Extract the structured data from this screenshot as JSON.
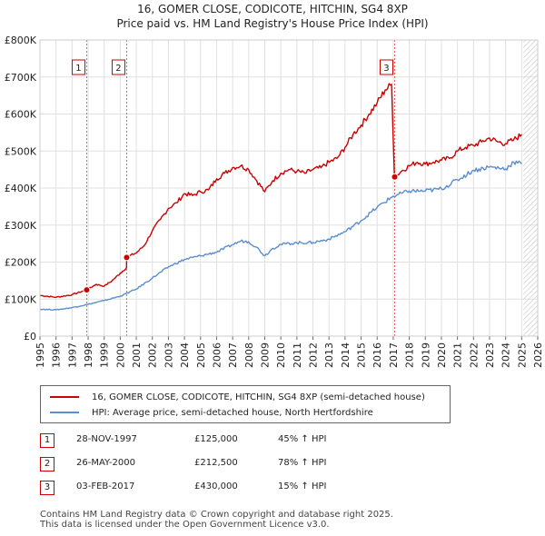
{
  "title_line1": "16, GOMER CLOSE, CODICOTE, HITCHIN, SG4 8XP",
  "title_line2": "Price paid vs. HM Land Registry's House Price Index (HPI)",
  "colors": {
    "property": "#cc0000",
    "hpi": "#5b8ecf",
    "grid": "#e0e0e0",
    "plot_bg": "#ffffff",
    "future_hatch": "#dddddd"
  },
  "chart_data": {
    "type": "line",
    "title": "Price paid vs. HM Land Registry's House Price Index (HPI)",
    "xlabel": "",
    "ylabel": "",
    "xlim": [
      1995,
      2026
    ],
    "ylim": [
      0,
      800000
    ],
    "x_ticks": [
      "1995",
      "1996",
      "1997",
      "1998",
      "1999",
      "2000",
      "2001",
      "2002",
      "2003",
      "2004",
      "2005",
      "2006",
      "2007",
      "2008",
      "2009",
      "2010",
      "2011",
      "2012",
      "2013",
      "2014",
      "2015",
      "2016",
      "2017",
      "2018",
      "2019",
      "2020",
      "2021",
      "2022",
      "2023",
      "2024",
      "2025",
      "2026"
    ],
    "y_ticks": [
      {
        "value": 0,
        "label": "£0"
      },
      {
        "value": 100000,
        "label": "£100K"
      },
      {
        "value": 200000,
        "label": "£200K"
      },
      {
        "value": 300000,
        "label": "£300K"
      },
      {
        "value": 400000,
        "label": "£400K"
      },
      {
        "value": 500000,
        "label": "£500K"
      },
      {
        "value": 600000,
        "label": "£600K"
      },
      {
        "value": 700000,
        "label": "£700K"
      },
      {
        "value": 800000,
        "label": "£800K"
      }
    ],
    "future_from": 2025.1,
    "series": [
      {
        "name": "16, GOMER CLOSE, CODICOTE, HITCHIN, SG4 8XP (semi-detached house)",
        "color": "#cc0000",
        "x": [
          1995.0,
          1996.0,
          1997.0,
          1997.91,
          1998.5,
          1999.0,
          1999.5,
          2000.0,
          2000.39,
          2000.4,
          2001.0,
          2001.5,
          2002.0,
          2002.5,
          2003.0,
          2003.5,
          2004.0,
          2004.5,
          2005.0,
          2005.5,
          2006.0,
          2006.5,
          2007.0,
          2007.5,
          2008.0,
          2008.5,
          2009.0,
          2009.5,
          2010.0,
          2010.5,
          2011.0,
          2011.5,
          2012.0,
          2012.5,
          2013.0,
          2013.5,
          2014.0,
          2014.5,
          2015.0,
          2015.5,
          2016.0,
          2016.5,
          2016.9,
          2017.08,
          2017.5,
          2018.0,
          2018.5,
          2019.0,
          2019.5,
          2020.0,
          2020.5,
          2021.0,
          2021.5,
          2022.0,
          2022.5,
          2023.0,
          2023.5,
          2024.0,
          2024.5,
          2025.0
        ],
        "y": [
          110000,
          105000,
          112000,
          125000,
          140000,
          135000,
          150000,
          170000,
          185000,
          212500,
          225000,
          245000,
          285000,
          315000,
          345000,
          360000,
          385000,
          380000,
          390000,
          395000,
          425000,
          440000,
          455000,
          460000,
          450000,
          420000,
          390000,
          420000,
          440000,
          450000,
          445000,
          440000,
          450000,
          455000,
          470000,
          480000,
          510000,
          545000,
          570000,
          600000,
          630000,
          665000,
          680000,
          430000,
          445000,
          460000,
          470000,
          465000,
          470000,
          475000,
          480000,
          500000,
          510000,
          515000,
          525000,
          535000,
          525000,
          520000,
          530000,
          545000
        ]
      },
      {
        "name": "HPI: Average price, semi-detached house, North Hertfordshire",
        "color": "#5b8ecf",
        "x": [
          1995.0,
          1996.0,
          1997.0,
          1998.0,
          1999.0,
          2000.0,
          2001.0,
          2002.0,
          2003.0,
          2004.0,
          2005.0,
          2006.0,
          2007.0,
          2007.5,
          2008.0,
          2008.5,
          2009.0,
          2009.5,
          2010.0,
          2011.0,
          2012.0,
          2013.0,
          2014.0,
          2015.0,
          2016.0,
          2017.0,
          2018.0,
          2019.0,
          2020.0,
          2021.0,
          2022.0,
          2023.0,
          2024.0,
          2024.5,
          2025.0
        ],
        "y": [
          73000,
          71000,
          77000,
          86000,
          96000,
          108000,
          127000,
          157000,
          187000,
          207000,
          217000,
          227000,
          247000,
          257000,
          255000,
          240000,
          217000,
          237000,
          248000,
          252000,
          253000,
          262000,
          282000,
          312000,
          348000,
          378000,
          392000,
          392000,
          398000,
          422000,
          448000,
          457000,
          452000,
          470000,
          465000
        ]
      }
    ],
    "markers": [
      {
        "label": "1",
        "x": 1997.91,
        "y": 125000
      },
      {
        "label": "2",
        "x": 2000.4,
        "y": 212500
      },
      {
        "label": "3",
        "x": 2017.09,
        "y": 430000
      }
    ]
  },
  "legend": {
    "property_label": "16, GOMER CLOSE, CODICOTE, HITCHIN, SG4 8XP (semi-detached house)",
    "hpi_label": "HPI: Average price, semi-detached house, North Hertfordshire"
  },
  "transactions": [
    {
      "num": "1",
      "date": "28-NOV-1997",
      "price": "£125,000",
      "hpi": "45% ↑ HPI"
    },
    {
      "num": "2",
      "date": "26-MAY-2000",
      "price": "£212,500",
      "hpi": "78% ↑ HPI"
    },
    {
      "num": "3",
      "date": "03-FEB-2017",
      "price": "£430,000",
      "hpi": "15% ↑ HPI"
    }
  ],
  "footer": {
    "line1": "Contains HM Land Registry data © Crown copyright and database right 2025.",
    "line2": "This data is licensed under the Open Government Licence v3.0."
  }
}
